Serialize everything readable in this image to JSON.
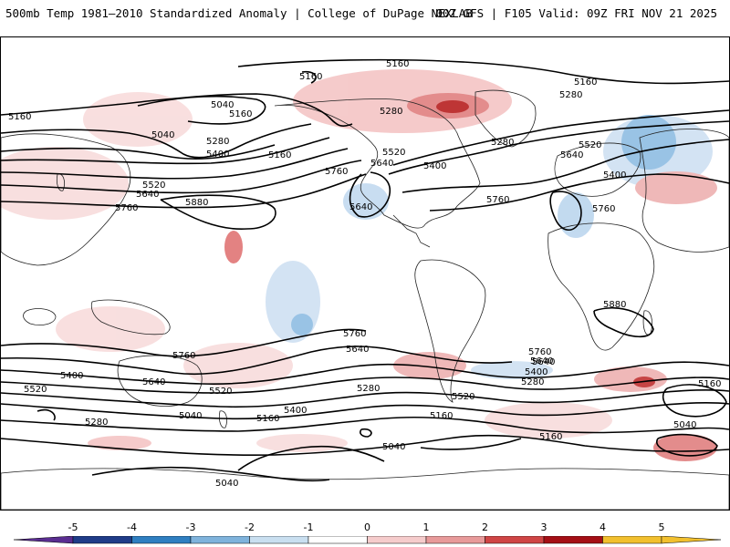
{
  "header": {
    "title_left": "500mb Temp 1981–2010 Standardized Anomaly | College of DuPage NEXLAB",
    "title_right": "00Z GFS | F105 Valid: 09Z FRI NOV 21 2025"
  },
  "map": {
    "contour_labels": [
      {
        "text": "5160"
      },
      {
        "text": "5160"
      },
      {
        "text": "5160"
      },
      {
        "text": "5040"
      },
      {
        "text": "5160"
      },
      {
        "text": "5160"
      },
      {
        "text": "5280"
      },
      {
        "text": "5280"
      },
      {
        "text": "5040"
      },
      {
        "text": "5280"
      },
      {
        "text": "5400"
      },
      {
        "text": "5160"
      },
      {
        "text": "5520"
      },
      {
        "text": "5640"
      },
      {
        "text": "5760"
      },
      {
        "text": "5520"
      },
      {
        "text": "5640"
      },
      {
        "text": "5400"
      },
      {
        "text": "5280"
      },
      {
        "text": "5520"
      },
      {
        "text": "5640"
      },
      {
        "text": "5400"
      },
      {
        "text": "5880"
      },
      {
        "text": "5640"
      },
      {
        "text": "5760"
      },
      {
        "text": "5760"
      },
      {
        "text": "5760"
      },
      {
        "text": "5880"
      },
      {
        "text": "5760"
      },
      {
        "text": "5640"
      },
      {
        "text": "5760"
      },
      {
        "text": "5640"
      },
      {
        "text": "5400"
      },
      {
        "text": "5520"
      },
      {
        "text": "5640"
      },
      {
        "text": "5520"
      },
      {
        "text": "5400"
      },
      {
        "text": "5280"
      },
      {
        "text": "5280"
      },
      {
        "text": "5040"
      },
      {
        "text": "5160"
      },
      {
        "text": "5160"
      },
      {
        "text": "5040"
      },
      {
        "text": "5040"
      },
      {
        "text": "5760"
      },
      {
        "text": "5640"
      },
      {
        "text": "5400"
      },
      {
        "text": "5280"
      },
      {
        "text": "5160"
      },
      {
        "text": "5040"
      },
      {
        "text": "5160"
      },
      {
        "text": "5520"
      },
      {
        "text": "5160"
      }
    ]
  },
  "colorbar": {
    "ticks": [
      "-5",
      "-4",
      "-3",
      "-2",
      "-1",
      "0",
      "1",
      "2",
      "3",
      "4",
      "5"
    ],
    "colors": [
      "#5a2d91",
      "#1f3c88",
      "#2f7fc1",
      "#7fb3dc",
      "#c9dff0",
      "#ffffff",
      "#f6cccc",
      "#e89a9a",
      "#d04545",
      "#a50f15",
      "#f2c02e"
    ]
  }
}
